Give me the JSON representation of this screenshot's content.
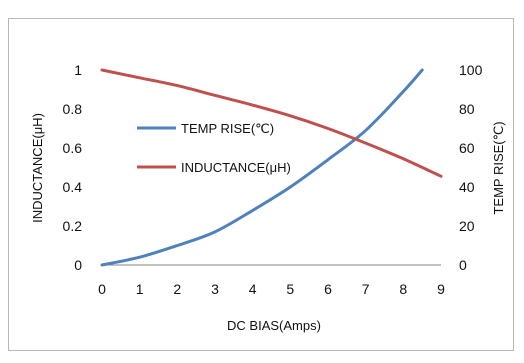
{
  "chart_data": {
    "type": "line",
    "xlabel": "DC  BIAS(Amps)",
    "ylabel_left": "INDUCTANCE(μH)",
    "ylabel_right": "TEMP RISE(℃)",
    "xlim": [
      0,
      9
    ],
    "ylim_left": [
      0,
      1
    ],
    "ylim_right": [
      0,
      100
    ],
    "x_ticks": [
      "0",
      "1",
      "2",
      "3",
      "4",
      "5",
      "6",
      "7",
      "8",
      "9"
    ],
    "y_left_ticks": [
      "0",
      "0.2",
      "0.4",
      "0.6",
      "0.8",
      "1"
    ],
    "y_right_ticks": [
      "0",
      "20",
      "40",
      "60",
      "80",
      "100"
    ],
    "grid": false,
    "legend_position": "center-left",
    "series": [
      {
        "name": "TEMP RISE(℃)",
        "axis": "right",
        "color": "#4f81bd",
        "x": [
          0,
          1,
          2,
          3,
          4,
          5,
          6,
          7,
          8,
          8.5
        ],
        "y": [
          0,
          4,
          10,
          17,
          28,
          40,
          54,
          69,
          89,
          100
        ]
      },
      {
        "name": "INDUCTANCE(μH)",
        "axis": "left",
        "color": "#c0504d",
        "x": [
          0,
          1,
          2,
          3,
          4,
          5,
          6,
          7,
          8,
          9
        ],
        "y": [
          1.0,
          0.96,
          0.92,
          0.87,
          0.82,
          0.765,
          0.7,
          0.625,
          0.545,
          0.455
        ]
      }
    ]
  }
}
